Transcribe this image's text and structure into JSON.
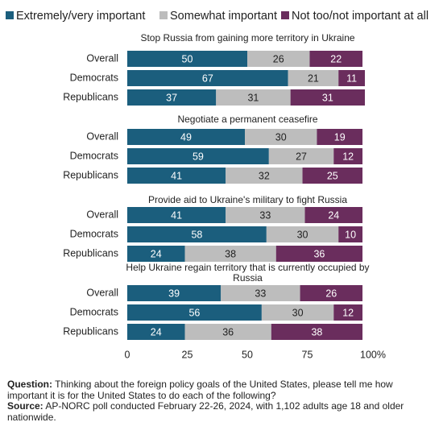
{
  "chart_data": [
    {
      "type": "stacked-bar",
      "title": "Stop Russia from gaining more territory in Ukraine",
      "categories": [
        "Overall",
        "Democrats",
        "Republicans"
      ],
      "series": [
        {
          "name": "Extremely/very important",
          "color": "#1b5e7d",
          "values": [
            50,
            67,
            37
          ]
        },
        {
          "name": "Somewhat important",
          "color": "#bdbdbd",
          "values": [
            26,
            21,
            31
          ]
        },
        {
          "name": "Not too/not important at all",
          "color": "#6a2d5d",
          "values": [
            22,
            11,
            31
          ]
        }
      ],
      "xlim": [
        0,
        100
      ]
    },
    {
      "type": "stacked-bar",
      "title": "Negotiate a permanent ceasefire",
      "categories": [
        "Overall",
        "Democrats",
        "Republicans"
      ],
      "series": [
        {
          "name": "Extremely/very important",
          "color": "#1b5e7d",
          "values": [
            49,
            59,
            41
          ]
        },
        {
          "name": "Somewhat important",
          "color": "#bdbdbd",
          "values": [
            30,
            27,
            32
          ]
        },
        {
          "name": "Not too/not important at all",
          "color": "#6a2d5d",
          "values": [
            19,
            12,
            25
          ]
        }
      ],
      "xlim": [
        0,
        100
      ]
    },
    {
      "type": "stacked-bar",
      "title": "Provide aid to Ukraine's military to fight Russia",
      "categories": [
        "Overall",
        "Democrats",
        "Republicans"
      ],
      "series": [
        {
          "name": "Extremely/very important",
          "color": "#1b5e7d",
          "values": [
            41,
            58,
            24
          ]
        },
        {
          "name": "Somewhat important",
          "color": "#bdbdbd",
          "values": [
            33,
            30,
            38
          ]
        },
        {
          "name": "Not too/not important at all",
          "color": "#6a2d5d",
          "values": [
            24,
            10,
            36
          ]
        }
      ],
      "xlim": [
        0,
        100
      ]
    },
    {
      "type": "stacked-bar",
      "title": "Help Ukraine regain territory that is currently occupied by Russia",
      "categories": [
        "Overall",
        "Democrats",
        "Republicans"
      ],
      "series": [
        {
          "name": "Extremely/very important",
          "color": "#1b5e7d",
          "values": [
            39,
            56,
            24
          ]
        },
        {
          "name": "Somewhat important",
          "color": "#bdbdbd",
          "values": [
            33,
            30,
            36
          ]
        },
        {
          "name": "Not too/not important at all",
          "color": "#6a2d5d",
          "values": [
            26,
            12,
            38
          ]
        }
      ],
      "xlim": [
        0,
        100
      ],
      "xticks": [
        0,
        25,
        50,
        75,
        {
          "value": 100,
          "label": "100%"
        }
      ]
    }
  ],
  "notes": {
    "question_label": "Question:",
    "question": "Thinking about the foreign policy goals of the United States, please tell me how important it is for the United States to do each of the following?",
    "source_label": "Source:",
    "source": "AP-NORC poll conducted February 22-26, 2024, with 1,102 adults age 18 and older nationwide."
  }
}
